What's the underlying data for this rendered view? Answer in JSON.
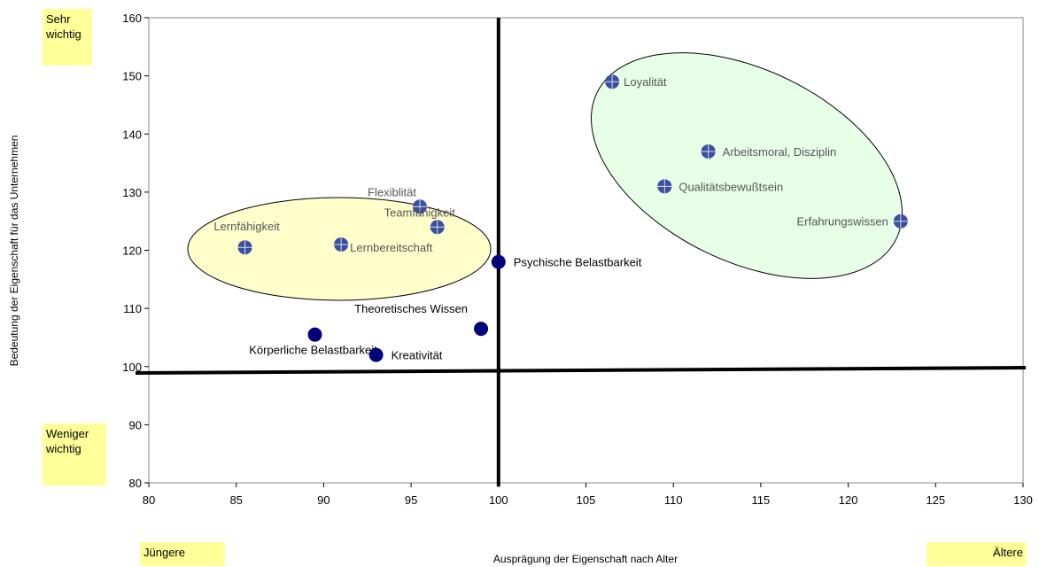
{
  "chart_data": {
    "type": "scatter",
    "xlabel": "Ausprägung der Eigenschaft nach Alter",
    "ylabel": "Bedeutung der Eigenschaft für das Unternehmen",
    "xlim": [
      80,
      130
    ],
    "ylim": [
      80,
      160
    ],
    "xticks": [
      80,
      85,
      90,
      95,
      100,
      105,
      110,
      115,
      120,
      125,
      130
    ],
    "yticks": [
      80,
      90,
      100,
      110,
      120,
      130,
      140,
      150,
      160
    ],
    "grid": false,
    "reference_lines": {
      "vertical_x": 100,
      "horizontal_y": 99.3
    },
    "points": [
      {
        "label": "Loyalität",
        "x": 106.5,
        "y": 149,
        "group": "green"
      },
      {
        "label": "Arbeitsmoral, Disziplin",
        "x": 112,
        "y": 137,
        "group": "green"
      },
      {
        "label": "Qualitätsbewußtsein",
        "x": 109.5,
        "y": 131,
        "group": "green"
      },
      {
        "label": "Erfahrungswissen",
        "x": 123,
        "y": 125,
        "group": "green"
      },
      {
        "label": "Flexiblität",
        "x": 95.5,
        "y": 127.5,
        "group": "yellow"
      },
      {
        "label": "Teamfähigkeit",
        "x": 96.5,
        "y": 124,
        "group": "yellow"
      },
      {
        "label": "Lernfähigkeit",
        "x": 85.5,
        "y": 120.5,
        "group": "yellow"
      },
      {
        "label": "Lernbereitschaft",
        "x": 91,
        "y": 121,
        "group": "yellow"
      },
      {
        "label": "Psychische Belastbarkeit",
        "x": 100,
        "y": 118,
        "group": "none"
      },
      {
        "label": "Theoretisches Wissen",
        "x": 99,
        "y": 106.5,
        "group": "none"
      },
      {
        "label": "Körperliche Belastbarkeit",
        "x": 89.5,
        "y": 105.5,
        "group": "none"
      },
      {
        "label": "Kreativität",
        "x": 93,
        "y": 102,
        "group": "none"
      }
    ],
    "clusters": [
      {
        "name": "yellow",
        "fill": "#ffffcc"
      },
      {
        "name": "green",
        "fill": "#e6ffe6"
      }
    ],
    "colors": {
      "point_dark": "#00007a",
      "point_light": "#3a4f9e",
      "label_muted": "#555555"
    }
  },
  "corners": {
    "top_left": "Sehr wichtig",
    "bottom_left": "Weniger wichtig",
    "x_left": "Jüngere",
    "x_right": "Ältere"
  }
}
